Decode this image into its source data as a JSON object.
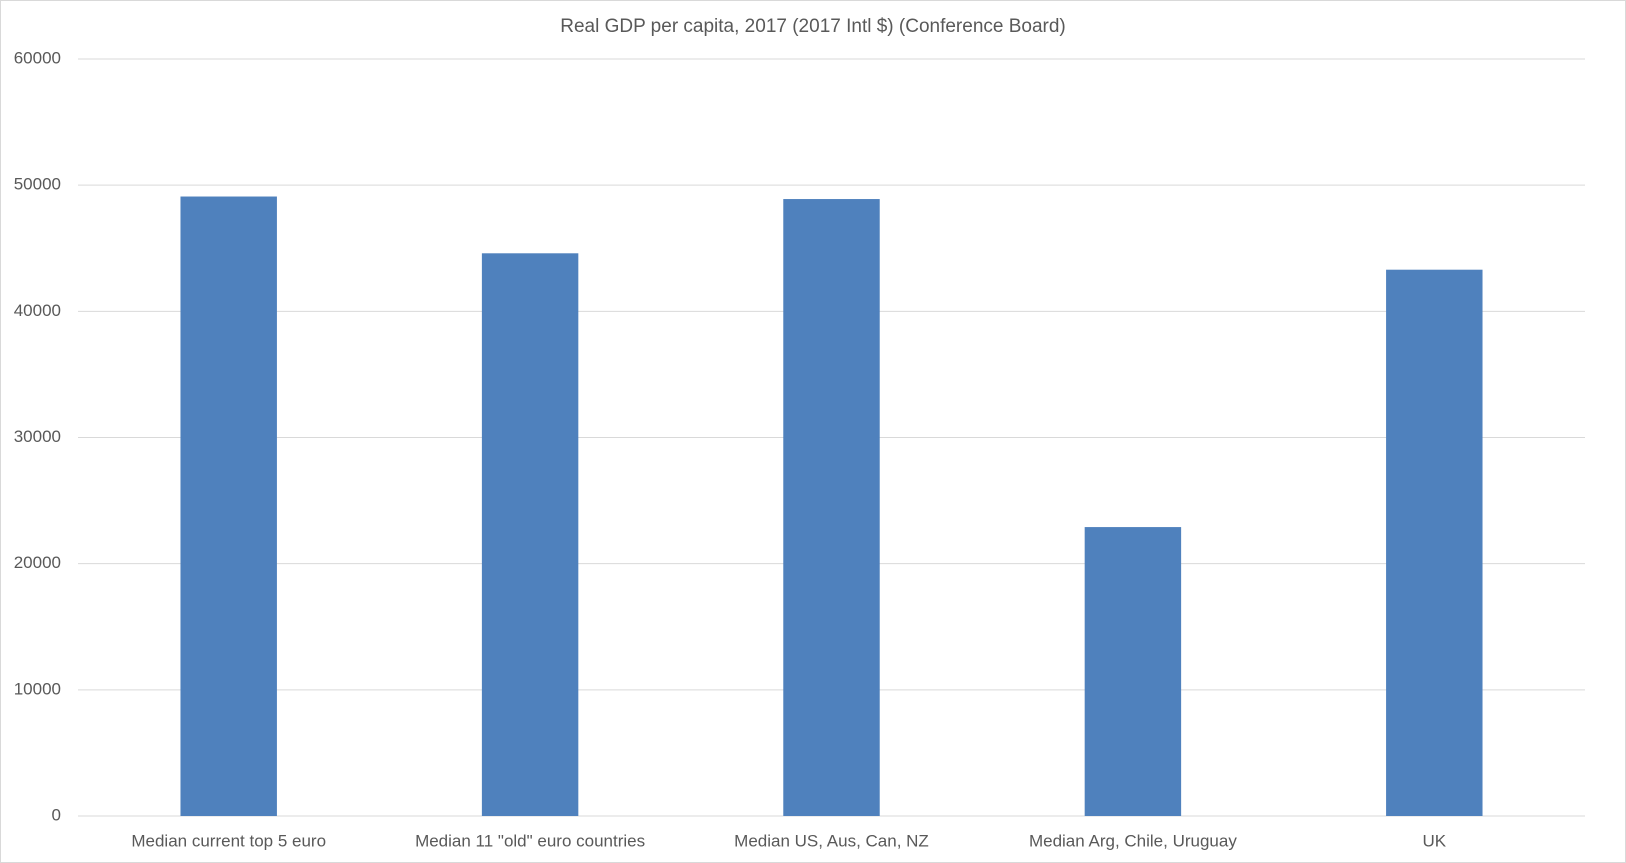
{
  "chart_data": {
    "type": "bar",
    "title": "Real GDP per capita, 2017  (2017 Intl $) (Conference Board)",
    "categories": [
      "Median current top 5 euro",
      "Median 11 \"old\" euro countries",
      "Median US, Aus, Can, NZ",
      "Median Arg, Chile, Uruguay",
      "UK"
    ],
    "values": [
      49100,
      44600,
      48900,
      22900,
      43300
    ],
    "color": "#4f81bd",
    "ylim": [
      0,
      60000
    ],
    "yticks": [
      0,
      10000,
      20000,
      30000,
      40000,
      50000,
      60000
    ],
    "grid": true
  }
}
